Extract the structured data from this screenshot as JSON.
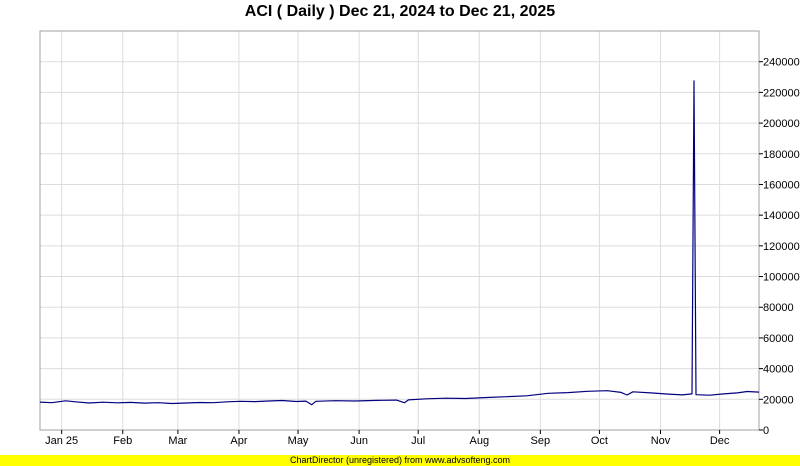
{
  "chart_data": {
    "type": "line",
    "title": "ACI ( Daily ) Dec 21, 2024 to Dec 21, 2025",
    "xlabel": "",
    "ylabel": "",
    "x_range": [
      "2024-12-21",
      "2025-12-21"
    ],
    "ylim": [
      0,
      260000
    ],
    "y_ticks": [
      0,
      20000,
      40000,
      60000,
      80000,
      100000,
      120000,
      140000,
      160000,
      180000,
      200000,
      220000,
      240000
    ],
    "x_ticks": [
      {
        "label": "Jan 25",
        "date": "2025-01-01"
      },
      {
        "label": "Feb",
        "date": "2025-02-01"
      },
      {
        "label": "Mar",
        "date": "2025-03-01"
      },
      {
        "label": "Apr",
        "date": "2025-04-01"
      },
      {
        "label": "May",
        "date": "2025-05-01"
      },
      {
        "label": "Jun",
        "date": "2025-06-01"
      },
      {
        "label": "Jul",
        "date": "2025-07-01"
      },
      {
        "label": "Aug",
        "date": "2025-08-01"
      },
      {
        "label": "Sep",
        "date": "2025-09-01"
      },
      {
        "label": "Oct",
        "date": "2025-10-01"
      },
      {
        "label": "Nov",
        "date": "2025-11-01"
      },
      {
        "label": "Dec",
        "date": "2025-12-01"
      }
    ],
    "grid": true,
    "series": [
      {
        "name": "",
        "color": "#000080",
        "points": [
          [
            "2024-12-21",
            18200
          ],
          [
            "2024-12-27",
            17800
          ],
          [
            "2025-01-03",
            19000
          ],
          [
            "2025-01-08",
            18400
          ],
          [
            "2025-01-15",
            17600
          ],
          [
            "2025-01-22",
            18100
          ],
          [
            "2025-01-29",
            17700
          ],
          [
            "2025-02-05",
            18000
          ],
          [
            "2025-02-12",
            17500
          ],
          [
            "2025-02-19",
            17800
          ],
          [
            "2025-02-26",
            17300
          ],
          [
            "2025-03-05",
            17600
          ],
          [
            "2025-03-12",
            17900
          ],
          [
            "2025-03-19",
            17800
          ],
          [
            "2025-03-26",
            18400
          ],
          [
            "2025-04-02",
            18700
          ],
          [
            "2025-04-09",
            18500
          ],
          [
            "2025-04-16",
            18900
          ],
          [
            "2025-04-23",
            19200
          ],
          [
            "2025-04-30",
            18600
          ],
          [
            "2025-05-05",
            18800
          ],
          [
            "2025-05-08",
            16500
          ],
          [
            "2025-05-10",
            18700
          ],
          [
            "2025-05-20",
            19100
          ],
          [
            "2025-05-30",
            18900
          ],
          [
            "2025-06-10",
            19300
          ],
          [
            "2025-06-20",
            19500
          ],
          [
            "2025-06-24",
            17800
          ],
          [
            "2025-06-26",
            19600
          ],
          [
            "2025-07-05",
            20300
          ],
          [
            "2025-07-15",
            20700
          ],
          [
            "2025-07-25",
            20500
          ],
          [
            "2025-08-05",
            21200
          ],
          [
            "2025-08-15",
            21700
          ],
          [
            "2025-08-25",
            22300
          ],
          [
            "2025-09-05",
            23900
          ],
          [
            "2025-09-15",
            24400
          ],
          [
            "2025-09-25",
            25200
          ],
          [
            "2025-10-05",
            25600
          ],
          [
            "2025-10-12",
            24500
          ],
          [
            "2025-10-15",
            22800
          ],
          [
            "2025-10-18",
            24900
          ],
          [
            "2025-10-28",
            24100
          ],
          [
            "2025-11-05",
            23400
          ],
          [
            "2025-11-12",
            22900
          ],
          [
            "2025-11-17",
            23500
          ],
          [
            "2025-11-18",
            227500
          ],
          [
            "2025-11-19",
            23000
          ],
          [
            "2025-11-26",
            22700
          ],
          [
            "2025-12-03",
            23500
          ],
          [
            "2025-12-10",
            24200
          ],
          [
            "2025-12-15",
            25100
          ],
          [
            "2025-12-21",
            24700
          ]
        ]
      }
    ]
  },
  "footer": {
    "text": "ChartDirector (unregistered) from www.advsofteng.com",
    "background": "#ffff00"
  }
}
